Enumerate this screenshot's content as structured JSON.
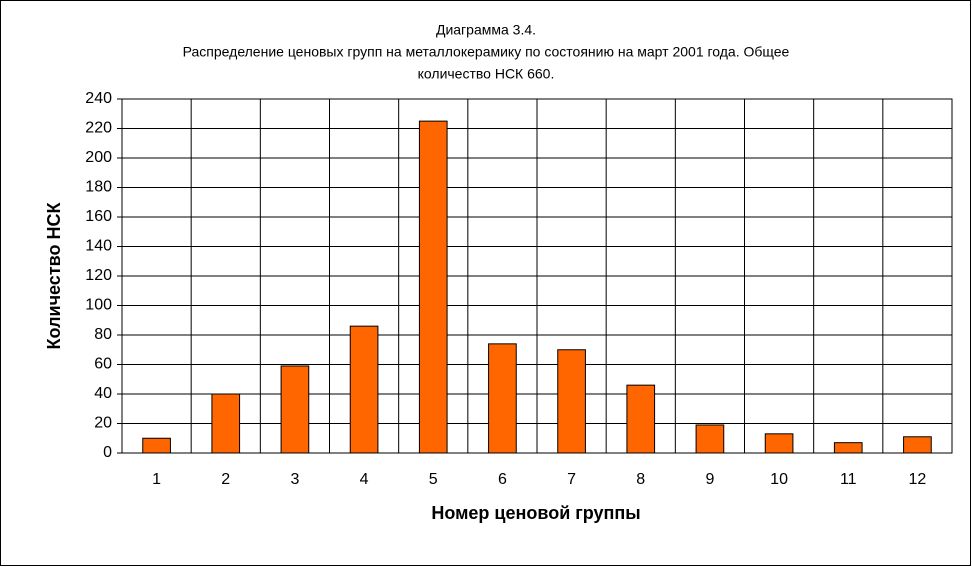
{
  "chart_data": {
    "type": "bar",
    "title": [
      "Диаграмма 3.4.",
      "Распределение ценовых групп на металлокерамику по состоянию на март 2001 года. Общее",
      "количество НСК 660."
    ],
    "x_label": "Номер ценовой группы",
    "y_label": "Количество НСК",
    "categories": [
      "1",
      "2",
      "3",
      "4",
      "5",
      "6",
      "7",
      "8",
      "9",
      "10",
      "11",
      "12"
    ],
    "values": [
      10,
      40,
      59,
      86,
      225,
      74,
      70,
      46,
      19,
      13,
      7,
      11
    ],
    "color": "#ff6600",
    "ylim": [
      0,
      240
    ],
    "yticks": [
      0,
      20,
      40,
      60,
      80,
      100,
      120,
      140,
      160,
      180,
      200,
      220,
      240
    ],
    "grid": true
  }
}
